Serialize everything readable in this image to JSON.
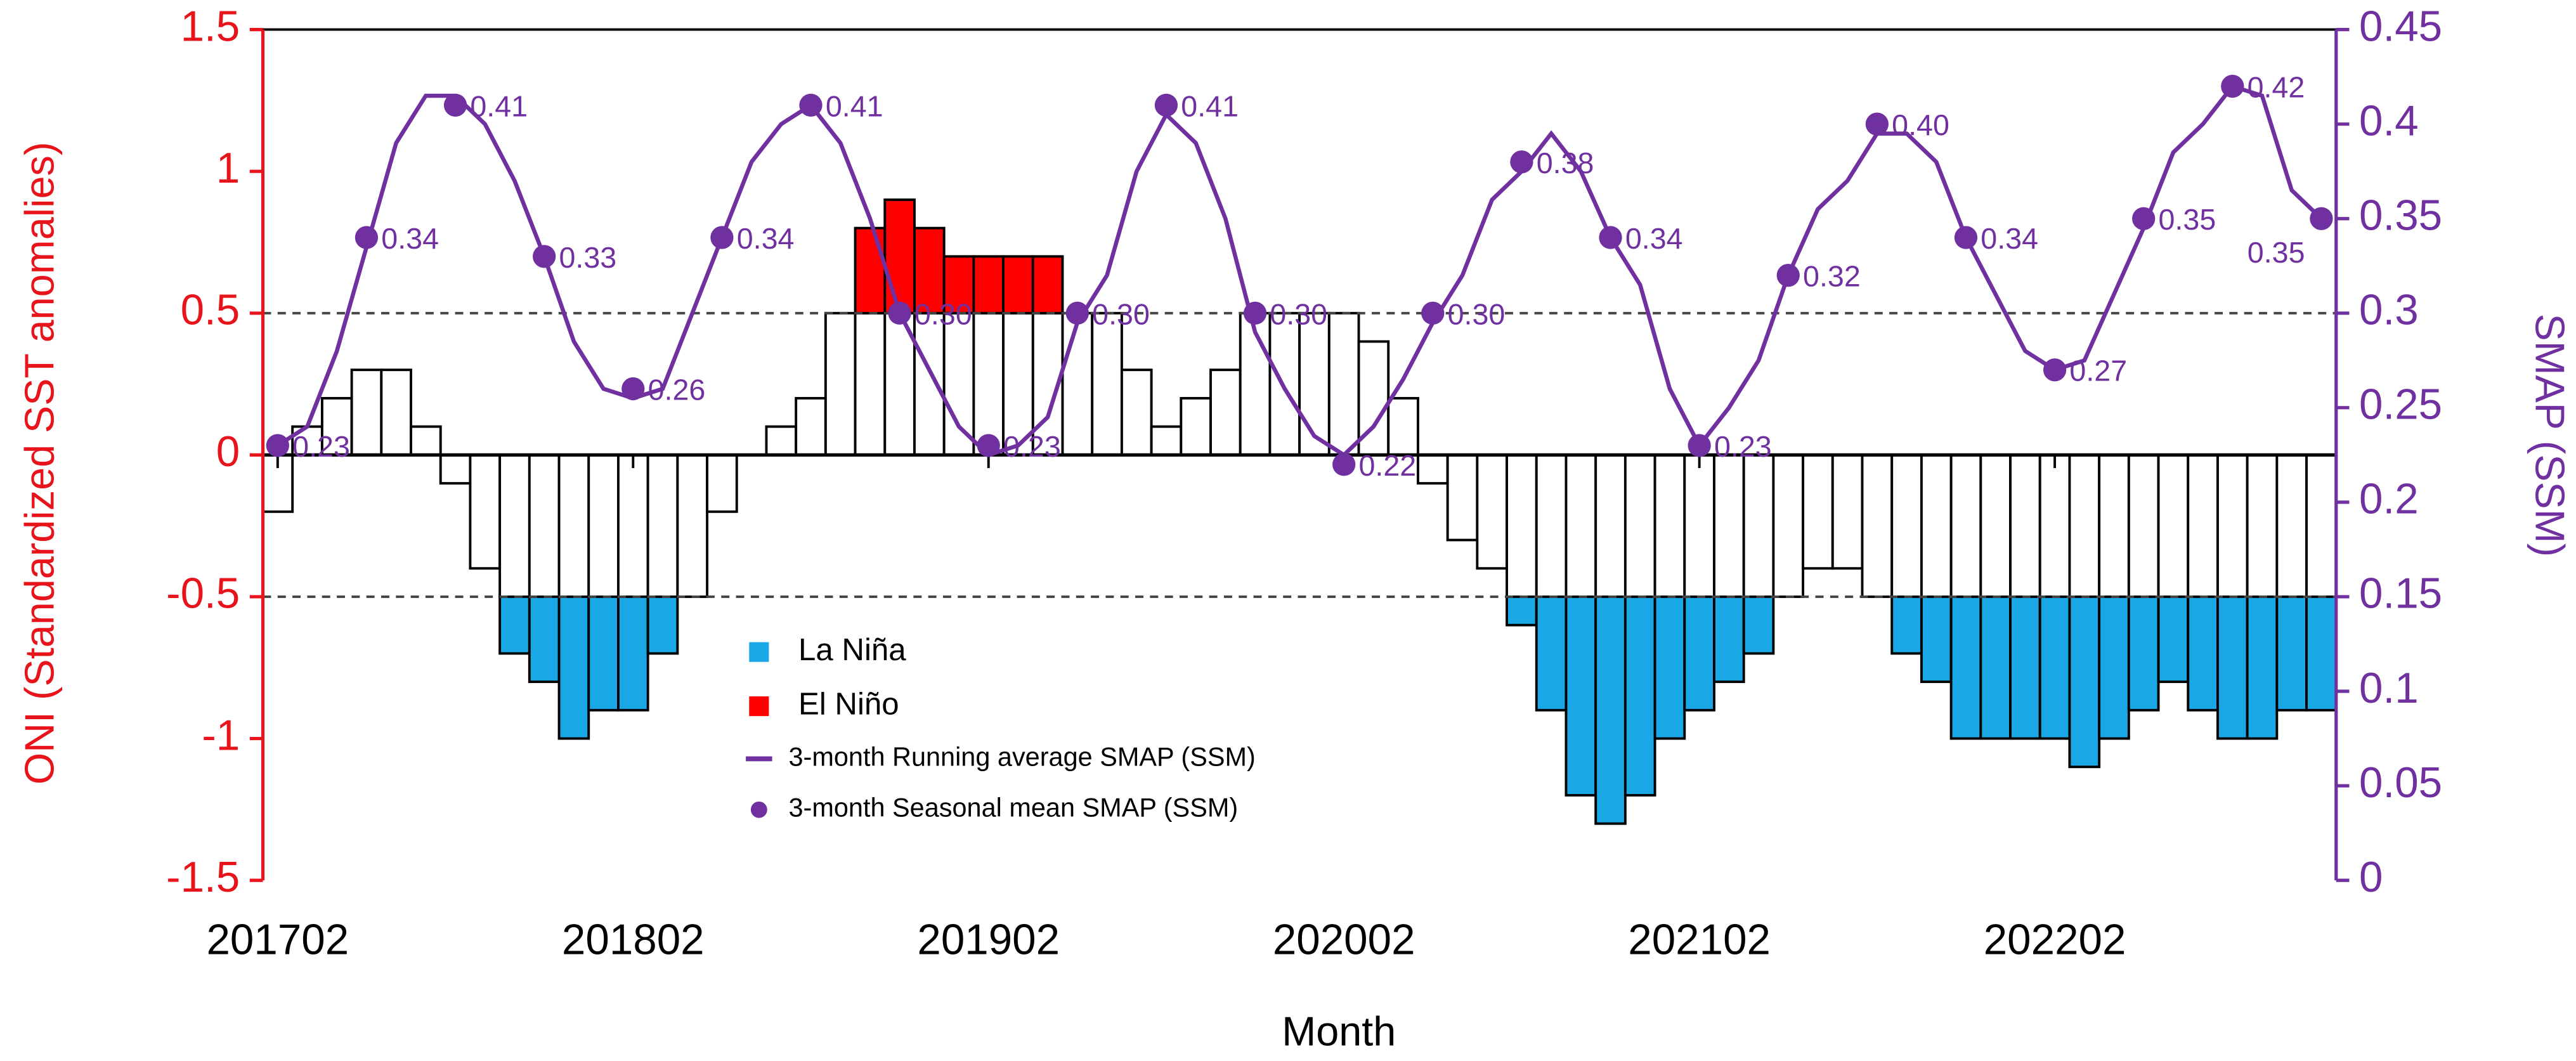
{
  "chart_data": {
    "type": "bar",
    "xlabel": "Month",
    "ylabel": "ONI (Standardized SST anomalies)",
    "y2label": "SMAP (SSM)",
    "y_color": "#e8141b",
    "y2_color": "#7030a0",
    "categories": [
      "201702",
      null,
      null,
      null,
      null,
      null,
      null,
      null,
      null,
      null,
      null,
      null,
      "201802",
      null,
      null,
      null,
      null,
      null,
      null,
      null,
      null,
      null,
      null,
      null,
      "201902",
      null,
      null,
      null,
      null,
      null,
      null,
      null,
      null,
      null,
      null,
      null,
      "202002",
      null,
      null,
      null,
      null,
      null,
      null,
      null,
      null,
      null,
      null,
      null,
      "202102",
      null,
      null,
      null,
      null,
      null,
      null,
      null,
      null,
      null,
      null,
      null,
      "202202",
      null,
      null,
      null,
      null,
      null,
      null,
      null,
      null,
      null
    ],
    "values": [
      -0.2,
      0.1,
      0.2,
      0.3,
      0.3,
      0.1,
      -0.1,
      -0.4,
      -0.7,
      -0.8,
      -1.0,
      -0.9,
      -0.9,
      -0.7,
      -0.5,
      -0.2,
      0.0,
      0.1,
      0.2,
      0.5,
      0.8,
      0.9,
      0.8,
      0.7,
      0.7,
      0.7,
      0.7,
      0.5,
      0.5,
      0.3,
      0.1,
      0.2,
      0.3,
      0.5,
      0.5,
      0.5,
      0.5,
      0.4,
      0.2,
      -0.1,
      -0.3,
      -0.4,
      -0.6,
      -0.9,
      -1.2,
      -1.3,
      -1.2,
      -1.0,
      -0.9,
      -0.8,
      -0.7,
      -0.5,
      -0.4,
      -0.4,
      -0.5,
      -0.7,
      -0.8,
      -1.0,
      -1.0,
      -1.0,
      -1.0,
      -1.1,
      -1.0,
      -0.9,
      -0.8,
      -0.9,
      -1.0,
      -1.0,
      -0.9,
      -0.9
    ],
    "color": "#ffffff",
    "reference_lines": [
      0.5,
      -0.5
    ],
    "highlights": [
      {
        "name": "La Niña",
        "color": "#1aa7e6",
        "threshold": -0.5
      },
      {
        "name": "El Niño",
        "color": "#ff0000",
        "threshold": 0.5
      }
    ],
    "series": [
      {
        "name": "3-month Running average SMAP (SSM)",
        "kind": "line",
        "axis": "y2",
        "color": "#7030a0",
        "values": [
          0.23,
          0.24,
          0.28,
          0.335,
          0.39,
          0.415,
          0.415,
          0.4,
          0.37,
          0.33,
          0.285,
          0.26,
          0.255,
          0.26,
          0.3,
          0.34,
          0.38,
          0.4,
          0.41,
          0.39,
          0.35,
          0.3,
          0.27,
          0.24,
          0.225,
          0.23,
          0.245,
          0.295,
          0.32,
          0.375,
          0.405,
          0.39,
          0.35,
          0.29,
          0.26,
          0.235,
          0.225,
          0.24,
          0.265,
          0.295,
          0.32,
          0.36,
          0.375,
          0.395,
          0.375,
          0.34,
          0.315,
          0.26,
          0.23,
          0.25,
          0.275,
          0.32,
          0.355,
          0.37,
          0.395,
          0.395,
          0.38,
          0.34,
          0.31,
          0.28,
          0.27,
          0.275,
          0.31,
          0.345,
          0.385,
          0.4,
          0.42,
          0.415,
          0.365,
          0.35
        ]
      },
      {
        "name": "3-month Seasonal mean SMAP (SSM)",
        "kind": "points",
        "axis": "y2",
        "color": "#7030a0",
        "values": [
          0.23,
          null,
          null,
          0.34,
          null,
          null,
          0.41,
          null,
          null,
          0.33,
          null,
          null,
          0.26,
          null,
          null,
          0.34,
          null,
          null,
          0.41,
          null,
          null,
          0.3,
          null,
          null,
          0.23,
          null,
          null,
          0.3,
          null,
          null,
          0.41,
          null,
          null,
          0.3,
          null,
          null,
          0.22,
          null,
          null,
          0.3,
          null,
          null,
          0.38,
          null,
          null,
          0.34,
          null,
          null,
          0.23,
          null,
          null,
          0.32,
          null,
          null,
          0.4,
          null,
          null,
          0.34,
          null,
          null,
          0.27,
          null,
          null,
          0.35,
          null,
          null,
          0.42,
          null,
          null,
          0.35
        ],
        "value_labels": [
          "0.23",
          null,
          null,
          "0.34",
          null,
          null,
          "0.41",
          null,
          null,
          "0.33",
          null,
          null,
          "0.26",
          null,
          null,
          "0.34",
          null,
          null,
          "0.41",
          null,
          null,
          "0.30",
          null,
          null,
          "0.23",
          null,
          null,
          "0.30",
          null,
          null,
          "0.41",
          null,
          null,
          "0.30",
          null,
          null,
          "0.22",
          null,
          null,
          "0.30",
          null,
          null,
          "0.38",
          null,
          null,
          "0.34",
          null,
          null,
          "0.23",
          null,
          null,
          "0.32",
          null,
          null,
          "0.40",
          null,
          null,
          "0.34",
          null,
          null,
          "0.27",
          null,
          null,
          "0.35",
          null,
          null,
          "0.42",
          null,
          null,
          "0.35"
        ]
      }
    ],
    "ylim": [
      -1.5,
      1.5
    ],
    "yticks": [
      -1.5,
      -1,
      -0.5,
      0,
      0.5,
      1,
      1.5
    ],
    "y2lim": [
      0,
      0.45
    ],
    "y2ticks": [
      0,
      0.05,
      0.1,
      0.15,
      0.2,
      0.25,
      0.3,
      0.35,
      0.4,
      0.45
    ]
  }
}
